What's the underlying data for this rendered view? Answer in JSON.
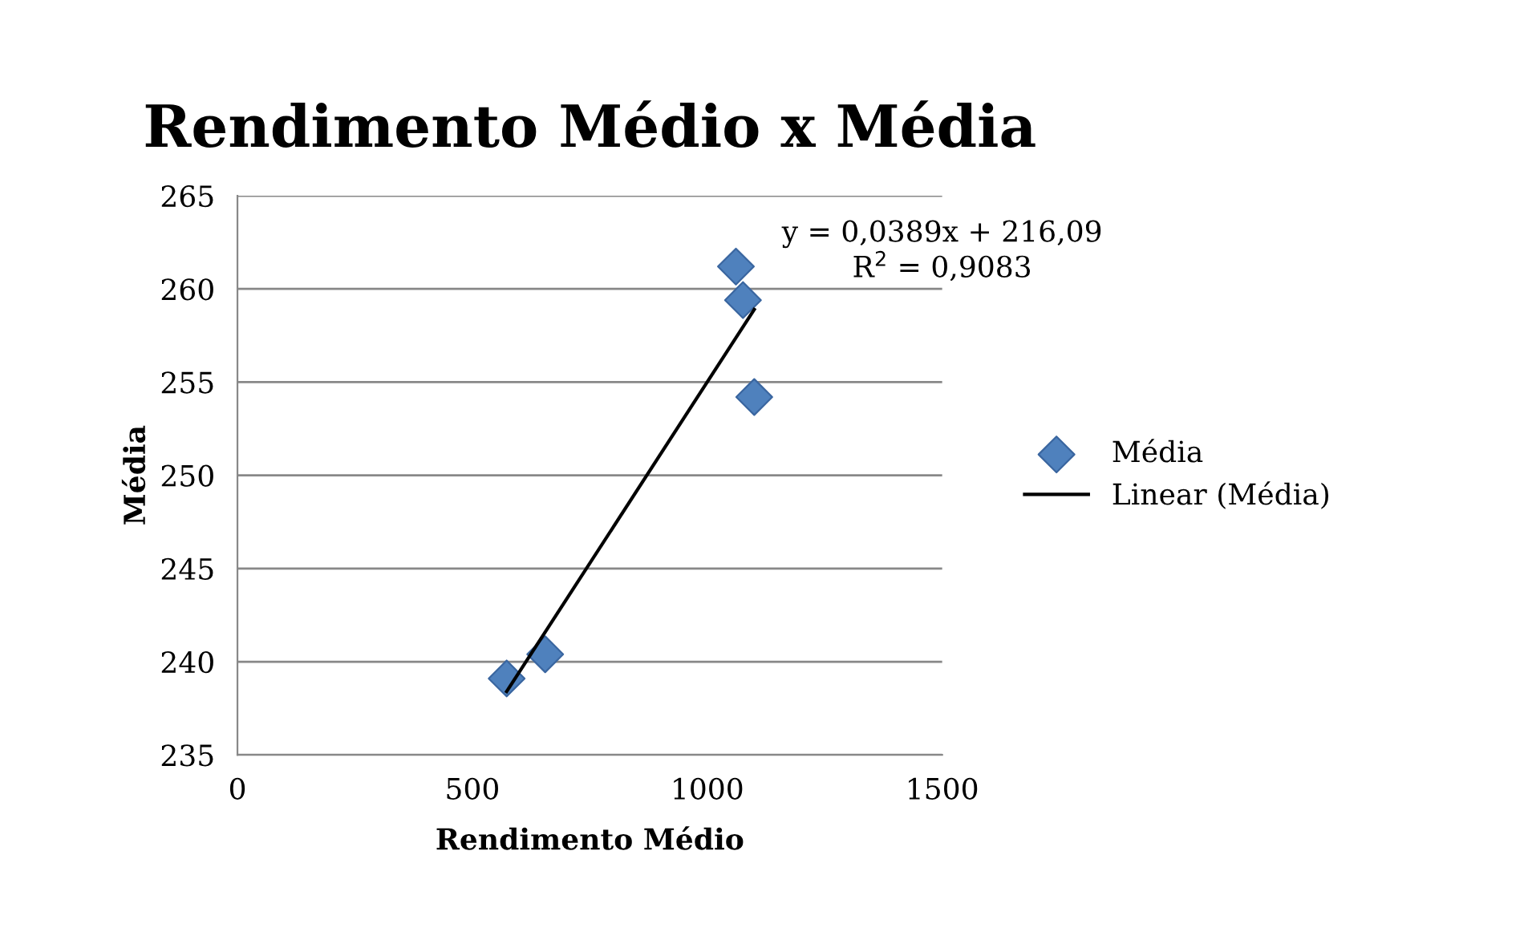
{
  "chart_data": {
    "type": "scatter",
    "title": "Rendimento Médio x Média",
    "xlabel": "Rendimento Médio",
    "ylabel": "Média",
    "xlim": [
      0,
      1500
    ],
    "xticks": [
      0,
      500,
      1000,
      1500
    ],
    "ylim": [
      235,
      265
    ],
    "yticks": [
      235,
      240,
      245,
      250,
      255,
      260,
      265
    ],
    "grid": "y",
    "legend": "right",
    "annotations": [
      "y = 0,0389x + 216,09\nR$^{2}$ = 0,9083"
    ],
    "series": [
      {
        "name": "Média",
        "marker": "diamond",
        "color": "#4f81bd",
        "x": [
          573,
          655,
          1061,
          1076,
          1100
        ],
        "values": [
          239.1,
          240.4,
          261.2,
          259.4,
          254.2
        ]
      },
      {
        "name": "Linear (Média)",
        "type": "line",
        "color": "#000000",
        "x": [
          573,
          1100
        ],
        "values": [
          238.4,
          258.9
        ]
      }
    ]
  }
}
